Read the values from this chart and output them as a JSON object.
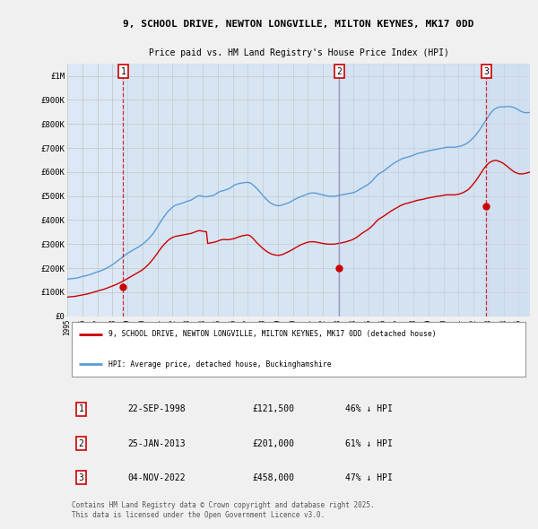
{
  "title_line1": "9, SCHOOL DRIVE, NEWTON LONGVILLE, MILTON KEYNES, MK17 0DD",
  "title_line2": "Price paid vs. HM Land Registry's House Price Index (HPI)",
  "background_color": "#f0f0f0",
  "plot_bg_color": "#dce8f5",
  "hpi_color": "#5b9bd5",
  "sale_color": "#cc0000",
  "grid_color": "#bbbbbb",
  "ylim": [
    0,
    1050000
  ],
  "yticks": [
    0,
    100000,
    200000,
    300000,
    400000,
    500000,
    600000,
    700000,
    800000,
    900000,
    1000000
  ],
  "ytick_labels": [
    "£0",
    "£100K",
    "£200K",
    "£300K",
    "£400K",
    "£500K",
    "£600K",
    "£700K",
    "£800K",
    "£900K",
    "£1M"
  ],
  "sales": [
    {
      "date_num": 1998.72,
      "price": 121500,
      "label": "1",
      "vline_color": "#cc0000",
      "vline_style": "--"
    },
    {
      "date_num": 2013.07,
      "price": 201000,
      "label": "2",
      "vline_color": "#8888bb",
      "vline_style": "-"
    },
    {
      "date_num": 2022.84,
      "price": 458000,
      "label": "3",
      "vline_color": "#cc0000",
      "vline_style": "--"
    }
  ],
  "legend_line1": "9, SCHOOL DRIVE, NEWTON LONGVILLE, MILTON KEYNES, MK17 0DD (detached house)",
  "legend_line2": "HPI: Average price, detached house, Buckinghamshire",
  "table_rows": [
    {
      "num": "1",
      "date": "22-SEP-1998",
      "price": "£121,500",
      "pct": "46% ↓ HPI"
    },
    {
      "num": "2",
      "date": "25-JAN-2013",
      "price": "£201,000",
      "pct": "61% ↓ HPI"
    },
    {
      "num": "3",
      "date": "04-NOV-2022",
      "price": "£458,000",
      "pct": "47% ↓ HPI"
    }
  ],
  "footer": "Contains HM Land Registry data © Crown copyright and database right 2025.\nThis data is licensed under the Open Government Licence v3.0.",
  "hpi_data_months": {
    "start_year": 1995,
    "start_month": 1,
    "values": [
      155000,
      155500,
      156000,
      156500,
      157000,
      157500,
      158000,
      159000,
      160000,
      161000,
      163000,
      164000,
      166000,
      167000,
      168000,
      169000,
      170000,
      172000,
      174000,
      175000,
      177000,
      179000,
      181000,
      183000,
      185000,
      186000,
      188000,
      190000,
      192000,
      194000,
      197000,
      199000,
      202000,
      205000,
      208000,
      211000,
      215000,
      218000,
      222000,
      226000,
      230000,
      234000,
      238000,
      242000,
      246000,
      250000,
      254000,
      258000,
      262000,
      265000,
      268000,
      271000,
      274000,
      277000,
      280000,
      283000,
      286000,
      289000,
      292000,
      296000,
      300000,
      304000,
      308000,
      313000,
      318000,
      323000,
      329000,
      335000,
      341000,
      348000,
      356000,
      364000,
      372000,
      381000,
      389000,
      397000,
      406000,
      413000,
      420000,
      427000,
      434000,
      439000,
      444000,
      449000,
      454000,
      458000,
      461000,
      463000,
      465000,
      466000,
      468000,
      469000,
      471000,
      473000,
      475000,
      477000,
      479000,
      480000,
      482000,
      484000,
      487000,
      490000,
      494000,
      497000,
      500000,
      501000,
      501000,
      500000,
      499000,
      498000,
      497000,
      497000,
      498000,
      499000,
      500000,
      501000,
      502000,
      504000,
      507000,
      510000,
      514000,
      517000,
      519000,
      521000,
      522000,
      523000,
      525000,
      527000,
      529000,
      531000,
      534000,
      537000,
      541000,
      544000,
      547000,
      549000,
      551000,
      552000,
      553000,
      554000,
      555000,
      556000,
      556000,
      557000,
      557000,
      556000,
      554000,
      551000,
      547000,
      542000,
      537000,
      532000,
      527000,
      521000,
      515000,
      509000,
      503000,
      497000,
      491000,
      486000,
      481000,
      476000,
      472000,
      469000,
      466000,
      464000,
      462000,
      461000,
      460000,
      460000,
      461000,
      462000,
      464000,
      466000,
      468000,
      469000,
      471000,
      473000,
      476000,
      479000,
      482000,
      485000,
      488000,
      490000,
      493000,
      495000,
      497000,
      499000,
      501000,
      503000,
      505000,
      507000,
      509000,
      511000,
      512000,
      513000,
      513000,
      513000,
      512000,
      511000,
      510000,
      508000,
      507000,
      506000,
      505000,
      503000,
      502000,
      501000,
      500000,
      499000,
      499000,
      499000,
      499000,
      499000,
      500000,
      501000,
      502000,
      503000,
      504000,
      505000,
      506000,
      507000,
      508000,
      509000,
      510000,
      511000,
      512000,
      513000,
      514000,
      516000,
      518000,
      521000,
      524000,
      527000,
      530000,
      533000,
      536000,
      539000,
      542000,
      545000,
      549000,
      553000,
      557000,
      562000,
      568000,
      574000,
      580000,
      585000,
      590000,
      594000,
      597000,
      600000,
      603000,
      607000,
      611000,
      615000,
      619000,
      623000,
      627000,
      631000,
      635000,
      638000,
      641000,
      644000,
      647000,
      650000,
      652000,
      655000,
      657000,
      659000,
      660000,
      661000,
      663000,
      664000,
      666000,
      668000,
      670000,
      672000,
      674000,
      676000,
      678000,
      679000,
      680000,
      681000,
      682000,
      684000,
      685000,
      687000,
      688000,
      689000,
      690000,
      691000,
      692000,
      693000,
      694000,
      695000,
      696000,
      697000,
      698000,
      699000,
      700000,
      701000,
      702000,
      703000,
      703000,
      703000,
      703000,
      703000,
      703000,
      703000,
      704000,
      705000,
      706000,
      707000,
      708000,
      710000,
      712000,
      714000,
      717000,
      720000,
      724000,
      728000,
      733000,
      738000,
      743000,
      749000,
      755000,
      762000,
      769000,
      776000,
      784000,
      792000,
      800000,
      808000,
      816000,
      824000,
      832000,
      840000,
      847000,
      853000,
      858000,
      862000,
      865000,
      867000,
      869000,
      870000,
      871000,
      871000,
      871000,
      871000,
      872000,
      872000,
      872000,
      872000,
      871000,
      870000,
      868000,
      866000,
      864000,
      861000,
      858000,
      855000,
      852000,
      850000,
      848000,
      847000,
      847000,
      847000,
      847000,
      848000,
      849000,
      851000,
      852000,
      854000,
      856000,
      857000,
      859000,
      861000,
      863000,
      865000,
      866000,
      867000,
      868000,
      870000,
      872000,
      874000,
      876000,
      878000,
      880000,
      882000,
      884000,
      886000,
      888000
    ]
  },
  "sale_hpi_data_months": {
    "start_year": 1995,
    "start_month": 1,
    "values": [
      80000,
      80500,
      81000,
      81500,
      82000,
      82500,
      83000,
      84000,
      85000,
      86000,
      87000,
      88000,
      89000,
      90000,
      91000,
      92000,
      93000,
      94500,
      96000,
      97500,
      99000,
      100500,
      102000,
      103500,
      105000,
      106500,
      108000,
      109500,
      111000,
      112500,
      114000,
      116000,
      118000,
      120000,
      122000,
      124000,
      126000,
      128000,
      130000,
      132000,
      135000,
      137000,
      140000,
      142500,
      145000,
      148000,
      151000,
      154000,
      157000,
      160000,
      163000,
      166000,
      169000,
      172000,
      175000,
      178000,
      181000,
      184000,
      187000,
      190000,
      194000,
      198000,
      202000,
      207000,
      212000,
      217000,
      223000,
      229000,
      235000,
      242000,
      249000,
      256000,
      263000,
      271000,
      278000,
      285000,
      292000,
      297000,
      303000,
      308000,
      314000,
      318000,
      322000,
      325000,
      328000,
      330000,
      332000,
      333000,
      334000,
      335000,
      336000,
      337000,
      338000,
      339000,
      340000,
      341000,
      342000,
      343000,
      344000,
      345000,
      347000,
      349000,
      351000,
      353000,
      355000,
      356000,
      356000,
      355000,
      354000,
      353000,
      352000,
      352000,
      303000,
      304000,
      305000,
      306000,
      307000,
      308000,
      309000,
      311000,
      313000,
      315000,
      317000,
      318000,
      319000,
      319000,
      319000,
      319000,
      319000,
      319000,
      320000,
      321000,
      322000,
      323000,
      325000,
      327000,
      329000,
      331000,
      332000,
      334000,
      335000,
      336000,
      337000,
      338000,
      338000,
      337000,
      334000,
      330000,
      325000,
      319000,
      313000,
      307000,
      302000,
      297000,
      292000,
      287000,
      282000,
      278000,
      274000,
      270000,
      267000,
      264000,
      261000,
      259000,
      257000,
      256000,
      255000,
      254000,
      254000,
      254000,
      255000,
      256000,
      258000,
      260000,
      263000,
      265000,
      268000,
      270000,
      273000,
      276000,
      279000,
      282000,
      285000,
      288000,
      291000,
      294000,
      297000,
      299000,
      301000,
      303000,
      305000,
      307000,
      308000,
      309000,
      310000,
      310000,
      310000,
      310000,
      309000,
      308000,
      307000,
      306000,
      305000,
      304000,
      303000,
      302000,
      301000,
      301000,
      300000,
      300000,
      300000,
      300000,
      300000,
      300000,
      301000,
      302000,
      303000,
      304000,
      305000,
      306000,
      307000,
      308000,
      309000,
      311000,
      313000,
      314000,
      316000,
      318000,
      320000,
      323000,
      326000,
      329000,
      333000,
      337000,
      341000,
      345000,
      348000,
      352000,
      355000,
      358000,
      362000,
      366000,
      370000,
      375000,
      380000,
      386000,
      392000,
      397000,
      402000,
      406000,
      409000,
      412000,
      415000,
      419000,
      422000,
      426000,
      430000,
      433000,
      437000,
      440000,
      443000,
      446000,
      449000,
      452000,
      455000,
      458000,
      461000,
      463000,
      465000,
      467000,
      469000,
      470000,
      471000,
      473000,
      474000,
      476000,
      477000,
      479000,
      480000,
      482000,
      483000,
      484000,
      485000,
      486000,
      487000,
      488000,
      490000,
      491000,
      492000,
      493000,
      494000,
      495000,
      496000,
      497000,
      498000,
      499000,
      500000,
      500000,
      501000,
      502000,
      503000,
      504000,
      505000,
      505000,
      505000,
      505000,
      505000,
      505000,
      505000,
      505000,
      506000,
      507000,
      508000,
      509000,
      511000,
      513000,
      515000,
      518000,
      521000,
      524000,
      528000,
      533000,
      539000,
      545000,
      552000,
      558000,
      565000,
      572000,
      580000,
      588000,
      596000,
      604000,
      612000,
      619000,
      625000,
      631000,
      636000,
      640000,
      643000,
      645000,
      647000,
      648000,
      648000,
      647000,
      645000,
      643000,
      641000,
      638000,
      635000,
      631000,
      627000,
      623000,
      618000,
      614000,
      610000,
      606000,
      602000,
      599000,
      597000,
      595000,
      593000,
      592000,
      592000,
      592000,
      593000,
      594000,
      595000,
      597000,
      598000,
      600000,
      601000,
      603000,
      604000,
      606000,
      608000,
      610000,
      612000,
      614000,
      615000,
      617000,
      618000,
      620000,
      621000,
      622000,
      624000,
      625000,
      627000,
      629000,
      630000,
      631000,
      632000,
      634000,
      636000
    ]
  },
  "xmin": 1995.0,
  "xmax": 2025.75,
  "xticks": [
    1995,
    1996,
    1997,
    1998,
    1999,
    2000,
    2001,
    2002,
    2003,
    2004,
    2005,
    2006,
    2007,
    2008,
    2009,
    2010,
    2011,
    2012,
    2013,
    2014,
    2015,
    2016,
    2017,
    2018,
    2019,
    2020,
    2021,
    2022,
    2023,
    2024,
    2025
  ]
}
